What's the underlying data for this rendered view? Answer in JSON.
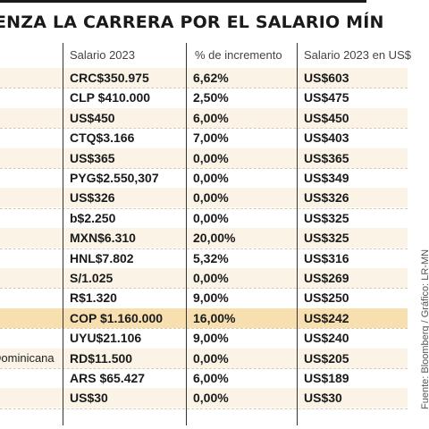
{
  "title": "ENZA LA CARRERA POR EL SALARIO MÍNIMO",
  "headers": [
    "Salario 2023",
    "% de incremento",
    "Salario 2023 en US$"
  ],
  "source": "Fuente: Bloomberg / Gráfico: LR-MN",
  "rows": [
    {
      "country": "",
      "salary": "CRC$350.975",
      "increase": "6,62%",
      "usd": "US$603"
    },
    {
      "country": "",
      "salary": "CLP $410.000",
      "increase": "2,50%",
      "usd": "US$475"
    },
    {
      "country": "",
      "salary": "US$450",
      "increase": "6,00%",
      "usd": "US$450"
    },
    {
      "country": "a",
      "salary": "CTQ$3.166",
      "increase": "7,00%",
      "usd": "US$403"
    },
    {
      "country": "",
      "salary": "US$365",
      "increase": "0,00%",
      "usd": "US$365"
    },
    {
      "country": "",
      "salary": "PYG$2.550,307",
      "increase": "0,00%",
      "usd": "US$349"
    },
    {
      "country": "",
      "salary": "US$326",
      "increase": "0,00%",
      "usd": "US$326"
    },
    {
      "country": "",
      "salary": "b$2.250",
      "increase": "0,00%",
      "usd": "US$325"
    },
    {
      "country": "",
      "salary": "MXN$6.310",
      "increase": "20,00%",
      "usd": "US$325"
    },
    {
      "country": "",
      "salary": "HNL$7.802",
      "increase": "5,32%",
      "usd": "US$316"
    },
    {
      "country": "",
      "salary": "S/1.025",
      "increase": "0,00%",
      "usd": "US$269"
    },
    {
      "country": "",
      "salary": "R$1.320",
      "increase": "9,00%",
      "usd": "US$250"
    },
    {
      "country": "",
      "salary": "COP $1.160.000",
      "increase": "16,00%",
      "usd": "US$242",
      "highlight": true
    },
    {
      "country": "",
      "salary": "UYU$21.106",
      "increase": "9,00%",
      "usd": "US$240"
    },
    {
      "country": "Dominicana",
      "salary": "RD$11.500",
      "increase": "0,00%",
      "usd": "US$205"
    },
    {
      "country": "",
      "salary": "ARS $65.427",
      "increase": "6,00%",
      "usd": "US$189"
    },
    {
      "country": "",
      "salary": "US$30",
      "increase": "0,00%",
      "usd": "US$30"
    }
  ]
}
